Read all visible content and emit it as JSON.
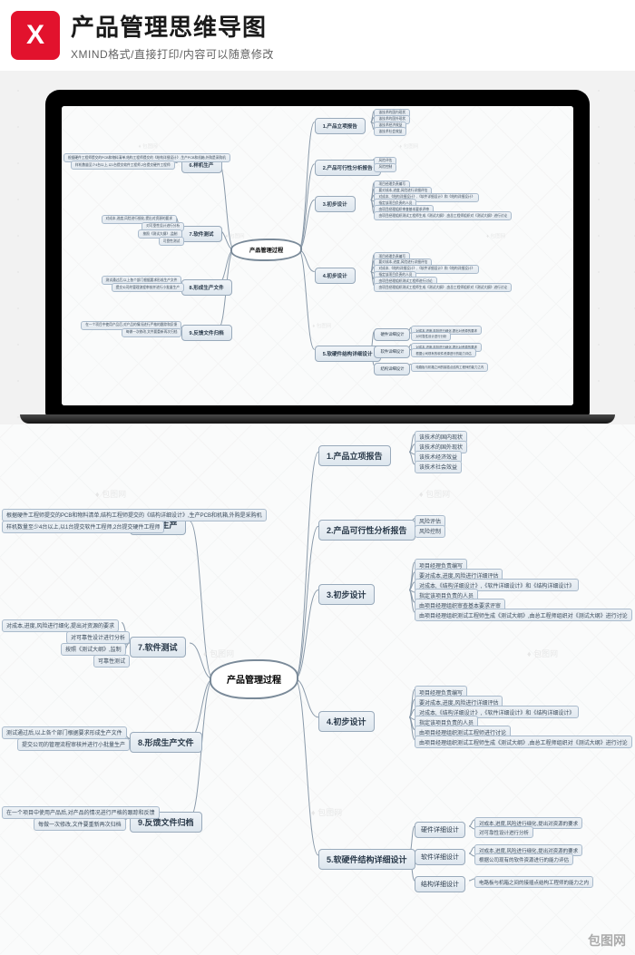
{
  "header": {
    "title": "产品管理思维导图",
    "subtitle": "XMIND格式/直接打印/内容可以随意修改",
    "logo_glyph": "X"
  },
  "center": "产品管理过程",
  "colors": {
    "node_bg_top": "#f0f4f8",
    "node_bg_bot": "#dde6ee",
    "node_border": "#99aabb",
    "leaf_border": "#aabbcc",
    "center_border": "#7a8a99",
    "connector": "#8a9aaa",
    "bg": "#fafbfb"
  },
  "watermark": "包图网",
  "right": [
    {
      "label": "1.产品立项报告",
      "leaves": [
        "该技术的国内现状",
        "该技术的国外现状",
        "该技术经济效益",
        "该技术社会效益"
      ]
    },
    {
      "label": "2.产品可行性分析报告",
      "leaves": [
        "风险评估",
        "风险控制"
      ]
    },
    {
      "label": "3.初步设计",
      "leaves": [
        "项目经理负责编写",
        "要对成本,进度,风险进行详细评估",
        "对成本,《结构详细设计》,《软件详细设计》和《结构详细设计》",
        "指定该项目负责的人员",
        "由项目经理组织审查基本要求评审",
        "由项目经理组织测试工程师生成《测试大纲》,由总工程师组织对《测试大纲》进行讨论"
      ]
    },
    {
      "label": "4.初步设计",
      "leaves": [
        "项目经理负责编写",
        "要对成本,进度,风险进行详细评估",
        "对成本,《结构详细设计》,《软件详细设计》和《结构详细设计》",
        "指定该项目负责的人员",
        "由项目经理组织测试工程师进行讨论",
        "由项目经理组织测试工程师生成《测试大纲》,由总工程师组织对《测试大纲》进行讨论"
      ]
    },
    {
      "label": "5.软硬件结构详细设计",
      "sub": [
        {
          "label": "硬件详细设计",
          "leaves": [
            "对成本,进度,风险进行细化,提出对资源的要求",
            "对可靠性设计进行分析"
          ]
        },
        {
          "label": "软件详细设计",
          "leaves": [
            "对成本,进度,风险进行细化,提出对资源的要求",
            "根据公司现有的软件资源进行的能力评估"
          ]
        },
        {
          "label": "结构详细设计",
          "leaves": [
            "电路板与机箱之间的接插点结构工程师的能力之内"
          ]
        }
      ]
    }
  ],
  "left": [
    {
      "label": "6.样机生产",
      "leaves": [
        "根据硬件工程师提交的PCB和物料清单,结构工程师提交的《结构详细设计》,生产PCB和机箱,外购是采购机",
        "样机数量至少4台以上,以1台提交软件工程师,2台提交硬件工程师"
      ]
    },
    {
      "label": "7.软件测试",
      "leaves": [
        "对成本,进度,风险进行细化,提出对资源的要求",
        "对可靠性设计进行分析",
        "按照《测试大纲》,监制",
        "可靠性测试"
      ]
    },
    {
      "label": "8.形成生产文件",
      "leaves": [
        "测试通过后,以上各个部门根据要求形成生产文件",
        "提交公司的管理流程审核并进行小批量生产"
      ]
    },
    {
      "label": "9.反馈文件归档",
      "leaves": [
        "在一个项目中使用产品后,对产品的情况进行严格的跟踪和反馈",
        "每做一次修改,文件要重新再次归档"
      ]
    }
  ]
}
